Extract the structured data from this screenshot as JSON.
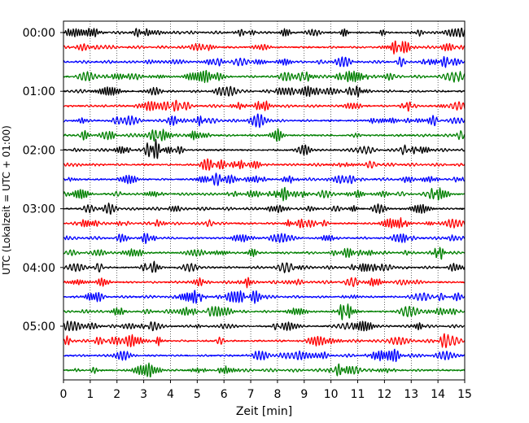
{
  "chart_data": {
    "type": "line",
    "title": "",
    "xlabel": "Zeit  [min]",
    "ylabel": "UTC (Lokalzeit = UTC + 01:00)",
    "xlim": [
      0,
      15
    ],
    "x_ticks": [
      0,
      1,
      2,
      3,
      4,
      5,
      6,
      7,
      8,
      9,
      10,
      11,
      12,
      13,
      14,
      15
    ],
    "x_tick_labels": [
      "0",
      "1",
      "2",
      "3",
      "4",
      "5",
      "6",
      "7",
      "8",
      "9",
      "10",
      "11",
      "12",
      "13",
      "14",
      "15"
    ],
    "y_tick_labels": [
      "00:00",
      "01:00",
      "02:00",
      "03:00",
      "04:00",
      "05:00"
    ],
    "minutes_per_trace": 15,
    "trace_count": 24,
    "trace_colors": [
      "#000000",
      "#ff0000",
      "#0000ff",
      "#008000"
    ],
    "x_grid": true,
    "grid_style": "dotted",
    "legend": "none",
    "trace_amplitude_note": "seismic helicorder — continuous waveform, amplitude small relative to trace spacing"
  }
}
